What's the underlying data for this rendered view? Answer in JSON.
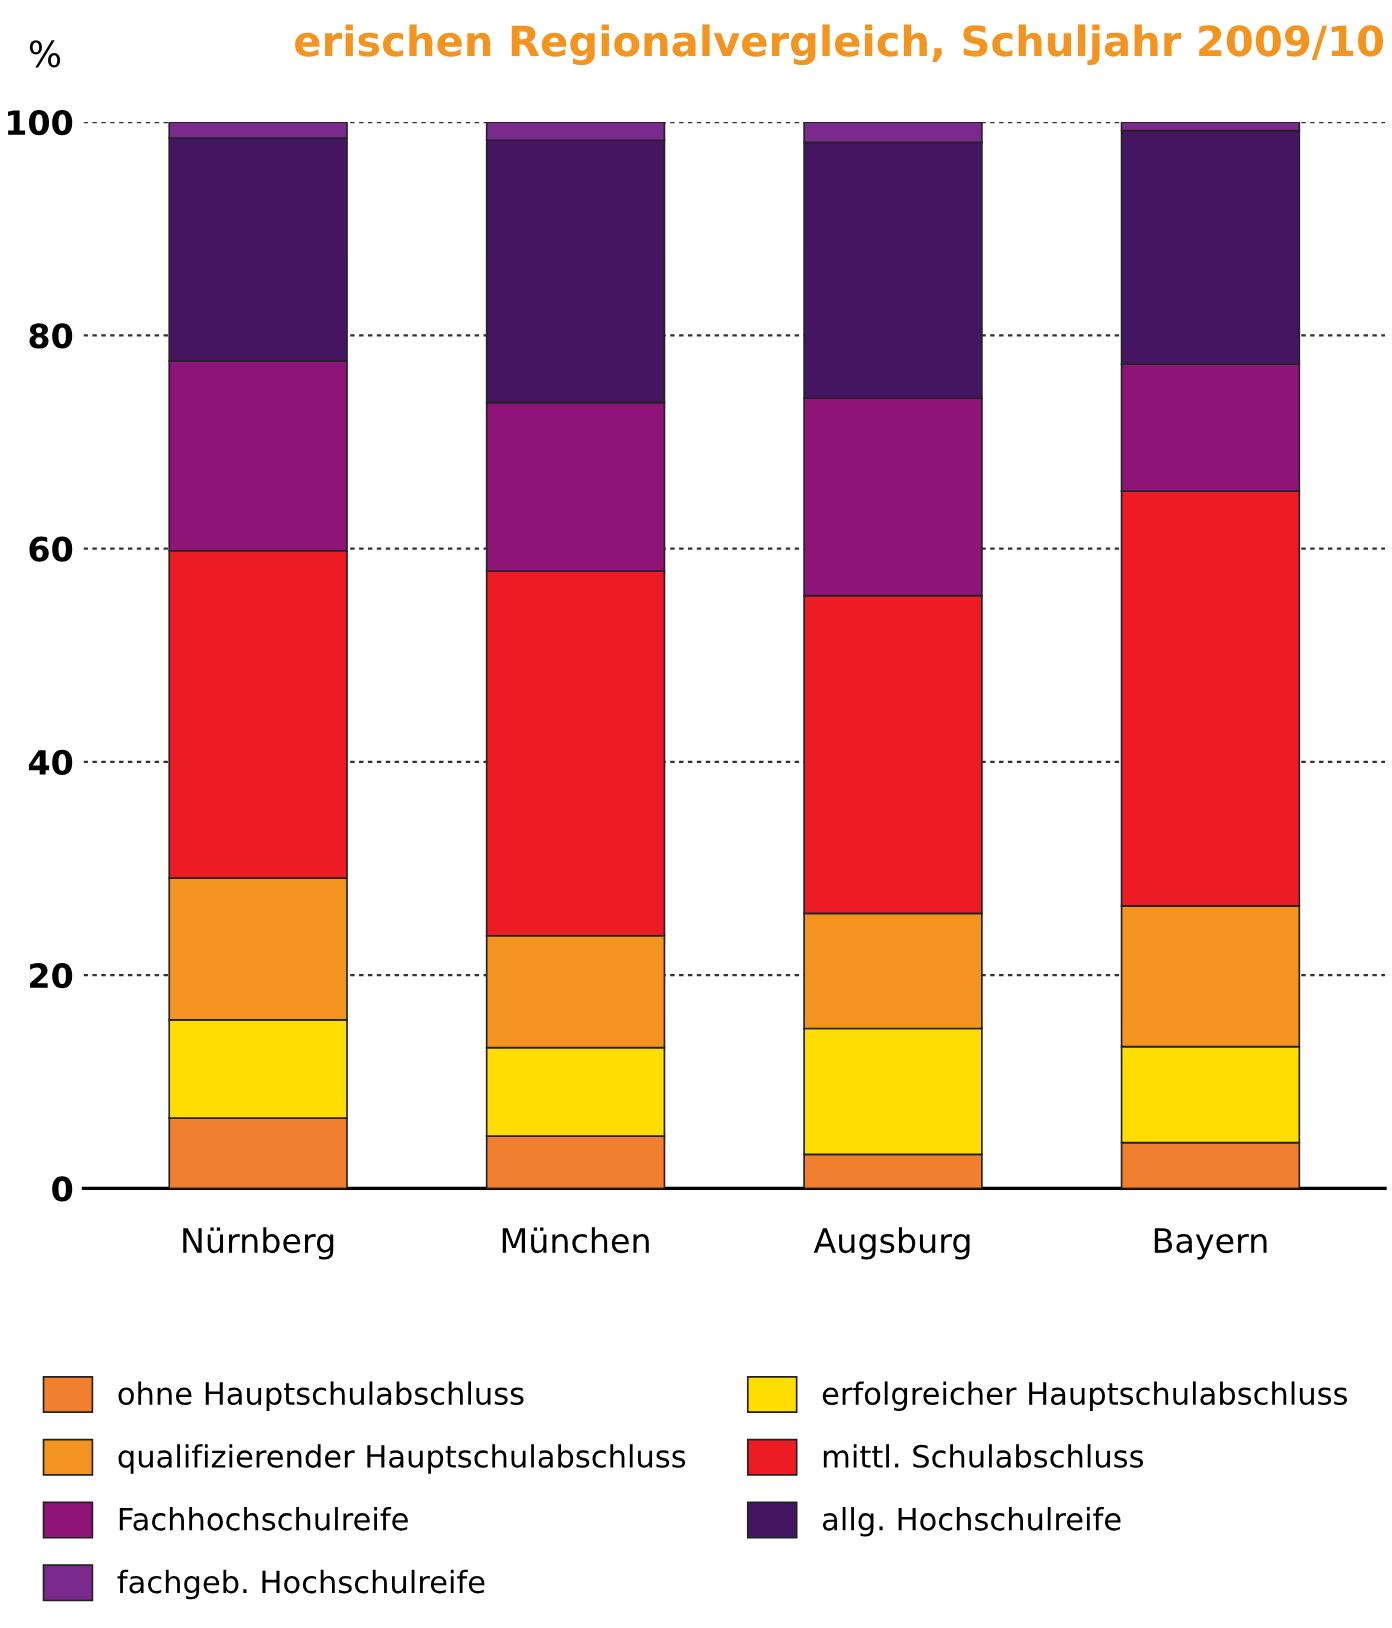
{
  "chart_data": {
    "type": "bar",
    "stacked": true,
    "title": "erischen Regionalvergleich, Schuljahr 2009/10",
    "ylabel": "%",
    "categories": [
      "Nürnberg",
      "München",
      "Augsburg",
      "Bayern"
    ],
    "series": [
      {
        "name": "ohne Hauptschulabschluss",
        "color": "#f07f30",
        "values": [
          6.6,
          4.9,
          3.2,
          4.3
        ]
      },
      {
        "name": "erfolgreicher Hauptschulabschluss",
        "color": "#ffdd00",
        "values": [
          9.2,
          8.3,
          11.8,
          9.0
        ]
      },
      {
        "name": "qualifizierender Hauptschulabschluss",
        "color": "#f39420",
        "values": [
          13.3,
          10.5,
          10.8,
          13.2
        ]
      },
      {
        "name": "mittl. Schulabschluss",
        "color": "#ed1c24",
        "values": [
          30.7,
          34.2,
          29.8,
          38.9
        ]
      },
      {
        "name": "Fachhochschulreife",
        "color": "#8e1478",
        "values": [
          17.8,
          15.8,
          18.5,
          11.9
        ]
      },
      {
        "name": "allg. Hochschulreife",
        "color": "#441560",
        "values": [
          20.9,
          24.6,
          24.0,
          21.9
        ]
      },
      {
        "name": "fachgeb. Hochschulreife",
        "color": "#7a2a8c",
        "values": [
          1.5,
          1.7,
          1.9,
          0.8
        ]
      }
    ],
    "ylim": [
      0,
      100
    ],
    "yticks": [
      0,
      20,
      40,
      60,
      80,
      100
    ],
    "grid": "y",
    "legend": "bottom"
  }
}
